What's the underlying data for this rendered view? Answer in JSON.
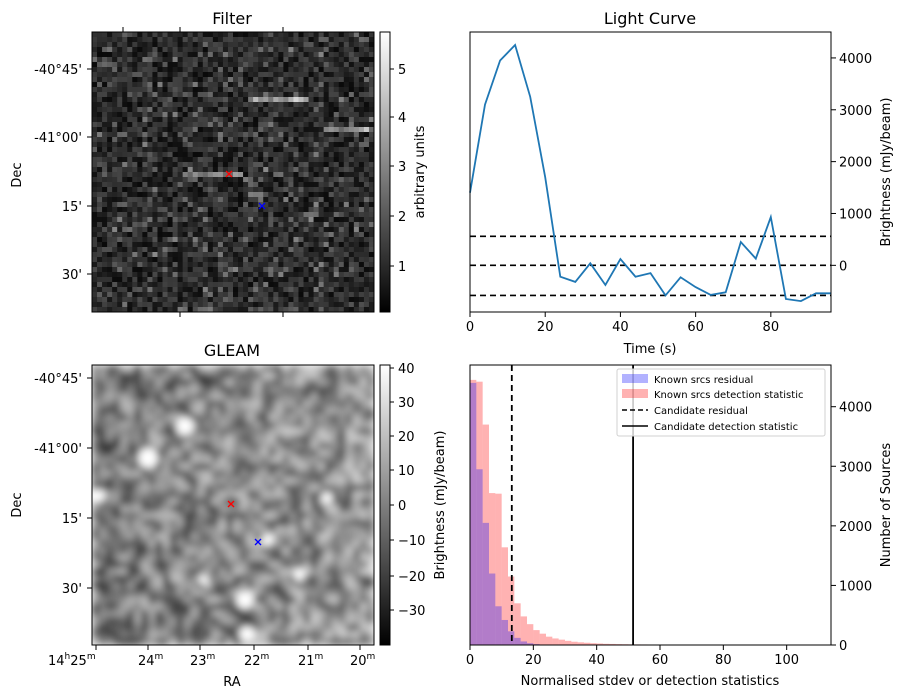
{
  "chart_data": [
    {
      "type": "heatmap",
      "title": "Filter",
      "ylabel": "Dec",
      "y_ticklabels": [
        "-40°45'",
        "-41°00'",
        "15'",
        "30'"
      ],
      "colorbar": {
        "label": "arbitrary units",
        "ticks": [
          "1",
          "2",
          "3",
          "4",
          "5"
        ],
        "range": [
          0.1,
          5.7
        ]
      },
      "markers": [
        {
          "color": "#ff0000",
          "symbol": "x"
        },
        {
          "color": "#0000ff",
          "symbol": "x"
        }
      ],
      "colors": {
        "map_dark": "#0a0a0a",
        "map_light": "#e6e6e6"
      }
    },
    {
      "type": "line",
      "title": "Light Curve",
      "xlabel": "Time (s)",
      "ylabel": "Brightness (mJy/beam)",
      "xlim": [
        0,
        96
      ],
      "ylim": [
        -900,
        4500
      ],
      "x_ticks": [
        0,
        20,
        40,
        60,
        80
      ],
      "y_ticks": [
        0,
        1000,
        2000,
        3000,
        4000
      ],
      "series": [
        {
          "name": "light curve",
          "color": "#1f77b4",
          "x": [
            0,
            4,
            8,
            12,
            16,
            20,
            24,
            28,
            32,
            36,
            40,
            44,
            48,
            52,
            56,
            60,
            64,
            68,
            72,
            76,
            80,
            84,
            88,
            92,
            96
          ],
          "y": [
            1400,
            3100,
            3950,
            4250,
            3250,
            1700,
            -220,
            -320,
            40,
            -380,
            120,
            -220,
            -150,
            -580,
            -230,
            -420,
            -570,
            -520,
            450,
            130,
            930,
            -650,
            -690,
            -540,
            -540
          ]
        }
      ],
      "hlines": [
        {
          "y": 560,
          "style": "dashed"
        },
        {
          "y": 0,
          "style": "dashed"
        },
        {
          "y": -580,
          "style": "dashed"
        }
      ]
    },
    {
      "type": "heatmap",
      "title": "GLEAM",
      "xlabel": "RA",
      "ylabel": "Dec",
      "x_ticklabels": [
        {
          "main": "14",
          "unit_h": "h",
          "min": "25",
          "unit_m": "m"
        },
        {
          "main": "24",
          "unit_m": "m"
        },
        {
          "main": "23",
          "unit_m": "m"
        },
        {
          "main": "22",
          "unit_m": "m"
        },
        {
          "main": "21",
          "unit_m": "m"
        },
        {
          "main": "20",
          "unit_m": "m"
        }
      ],
      "y_ticklabels": [
        "-40°45'",
        "-41°00'",
        "15'",
        "30'"
      ],
      "colorbar": {
        "label": "Brightness (mJy/beam)",
        "ticks": [
          "40",
          "30",
          "20",
          "10",
          "0",
          "−10",
          "−20",
          "−30"
        ],
        "range": [
          -38,
          41
        ]
      },
      "markers": [
        {
          "color": "#ff0000",
          "symbol": "x"
        },
        {
          "color": "#0000ff",
          "symbol": "x"
        }
      ]
    },
    {
      "type": "bar",
      "subtype": "histogram",
      "xlabel": "Normalised stdev or detection statistics",
      "ylabel": "Number of Sources",
      "xlim": [
        0,
        114
      ],
      "ylim": [
        0,
        4700
      ],
      "x_ticks": [
        0,
        20,
        40,
        60,
        80,
        100
      ],
      "y_ticks": [
        0,
        1000,
        2000,
        3000,
        4000
      ],
      "bin_width": 2,
      "series": [
        {
          "name": "Known srcs residual",
          "color": "#0000ff",
          "alpha": 0.3,
          "x_start": 0,
          "values": [
            4400,
            2950,
            2050,
            1200,
            650,
            420,
            230,
            120,
            60,
            30,
            15,
            8,
            4,
            2
          ]
        },
        {
          "name": "Known srcs detection statistic",
          "color": "#ff0000",
          "alpha": 0.3,
          "x_start": 0,
          "values": [
            4450,
            4420,
            3700,
            2550,
            2540,
            1640,
            1150,
            700,
            480,
            350,
            250,
            190,
            140,
            110,
            90,
            70,
            55,
            45,
            38,
            30,
            25,
            20,
            18,
            15,
            13,
            11,
            10,
            9,
            8,
            7,
            7,
            6,
            6,
            5,
            5,
            5,
            4,
            4,
            4,
            4,
            3,
            3,
            3,
            3,
            3,
            2,
            2,
            2,
            2,
            2,
            2,
            2,
            2,
            2,
            2,
            2
          ]
        }
      ],
      "vlines": [
        {
          "name": "Candidate residual",
          "x": 13.2,
          "style": "dashed"
        },
        {
          "name": "Candidate detection statistic",
          "x": 51.5,
          "style": "solid"
        }
      ],
      "legend_position": "top-right"
    }
  ]
}
